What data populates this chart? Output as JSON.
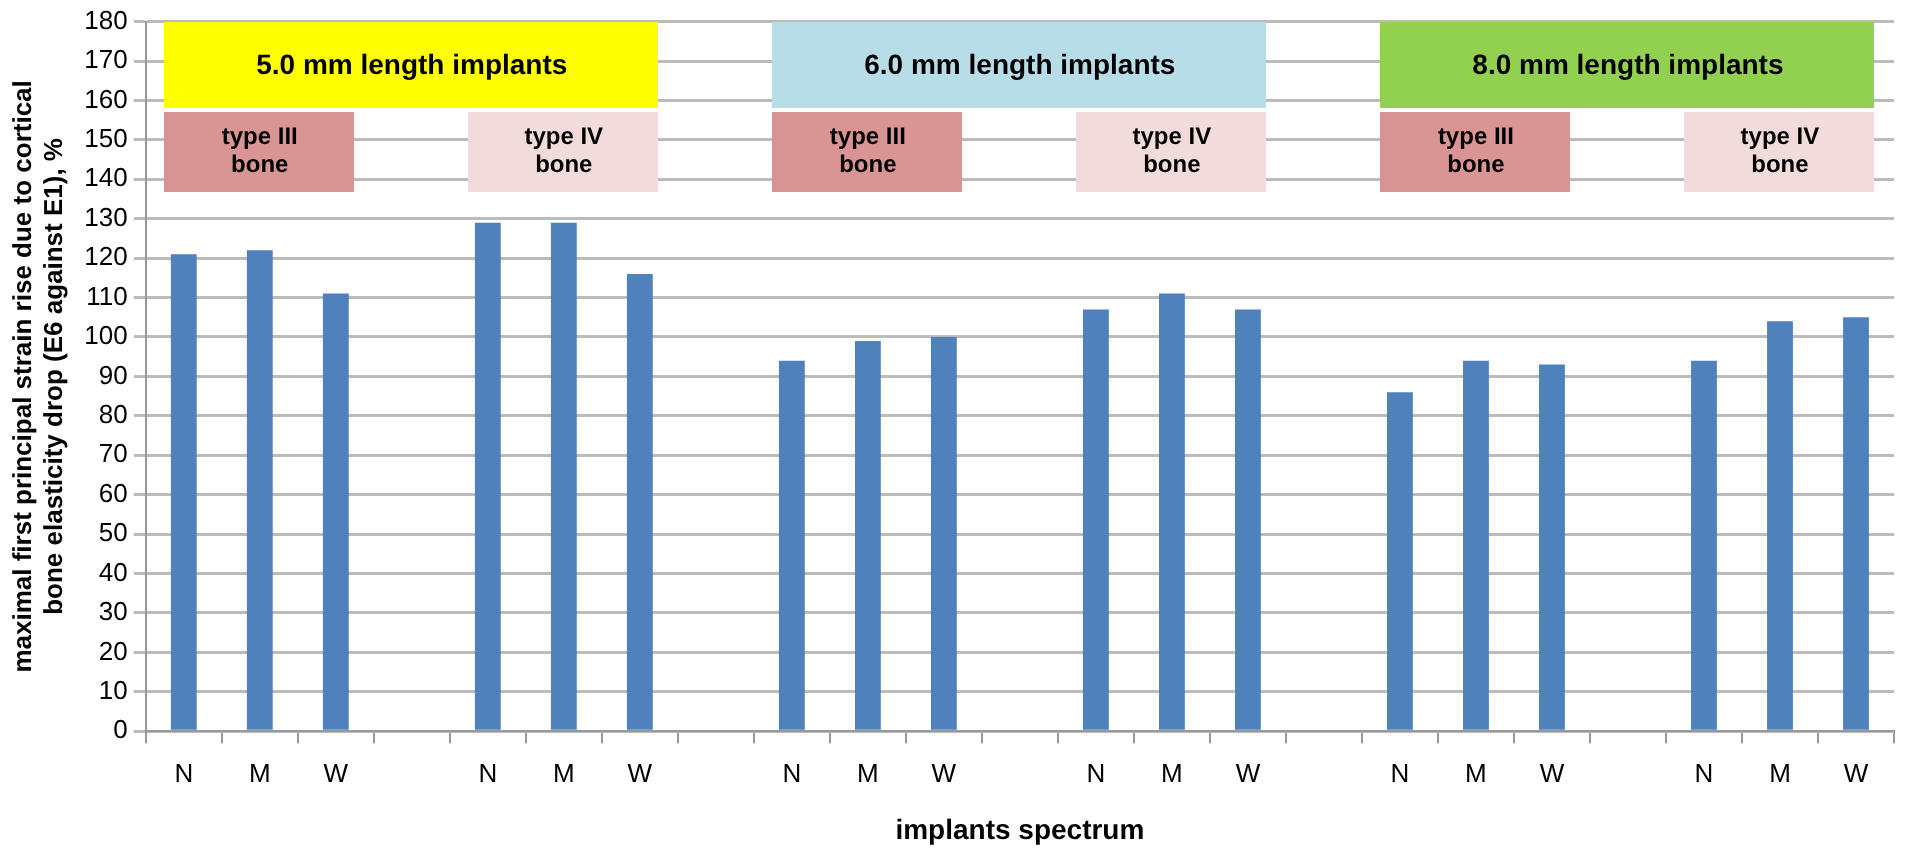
{
  "chart_data": {
    "type": "bar",
    "xlabel": "implants spectrum",
    "ylabel": "maximal first principal strain rise due to cortical bone elasticity drop (E6 against E1), %",
    "categories": [
      "N",
      "M",
      "W",
      null,
      "N",
      "M",
      "W",
      null,
      "N",
      "M",
      "W",
      null,
      "N",
      "M",
      "W",
      null,
      "N",
      "M",
      "W",
      null,
      "N",
      "M",
      "W"
    ],
    "values": [
      121,
      122,
      111,
      null,
      129,
      129,
      116,
      null,
      94,
      99,
      100,
      null,
      107,
      111,
      107,
      null,
      86,
      94,
      93,
      null,
      94,
      104,
      105
    ],
    "color": "#4f81bd",
    "ylim": [
      0,
      180
    ],
    "yticks": [
      0,
      10,
      20,
      30,
      40,
      50,
      60,
      70,
      80,
      90,
      100,
      110,
      120,
      130,
      140,
      150,
      160,
      170,
      180
    ],
    "grid": "y",
    "legend": false,
    "annotations": [
      "5.0 mm length implants",
      "type III bone",
      "type IV bone",
      "6.0 mm length implants",
      "type III bone",
      "type IV bone",
      "8.0 mm length implants",
      "type III bone",
      "type IV bone"
    ]
  }
}
